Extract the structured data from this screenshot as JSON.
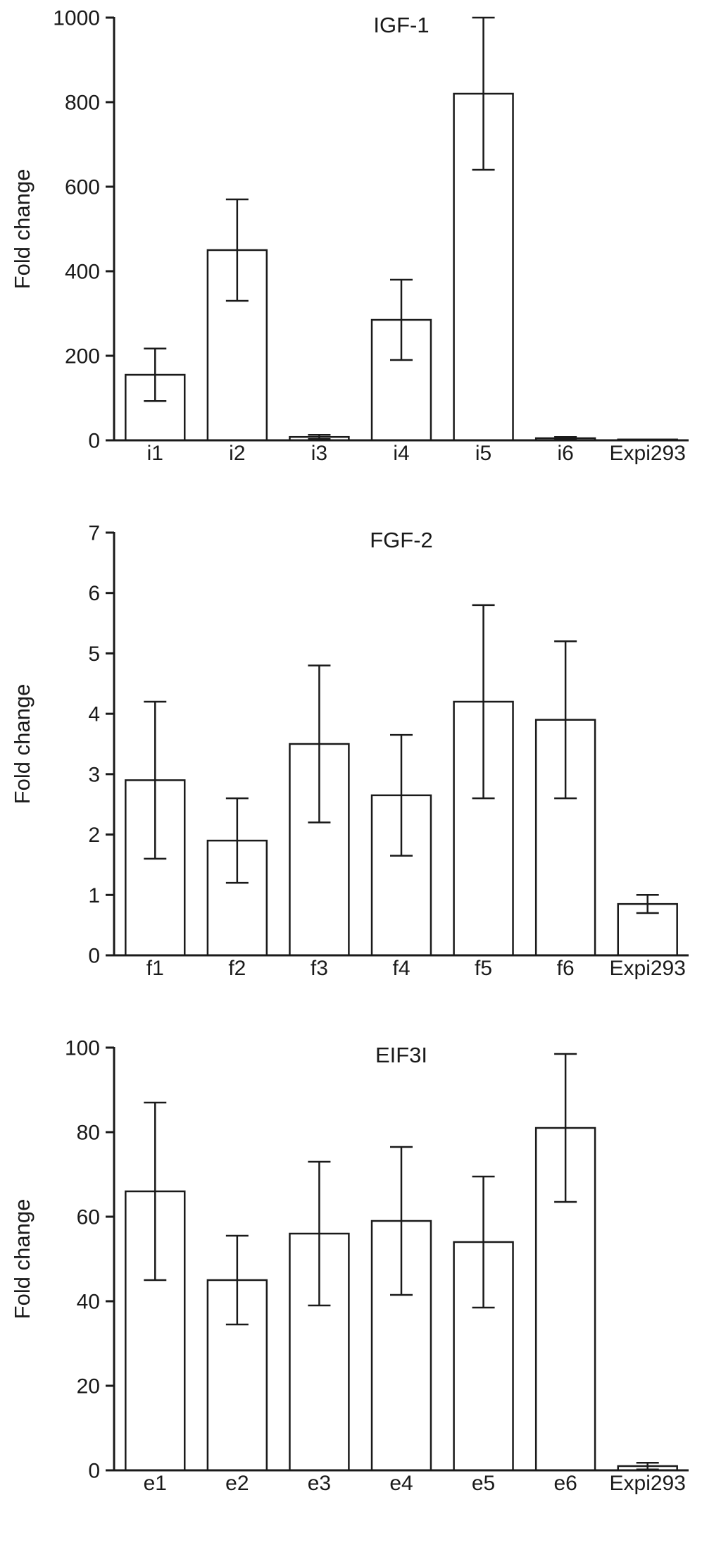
{
  "figure": {
    "background": "#ffffff",
    "ink": "#1a1a1a",
    "bar_fill": "#ffffff"
  },
  "chart_data": [
    {
      "type": "bar",
      "title": "IGF-1",
      "ylabel": "Fold change",
      "categories": [
        "i1",
        "i2",
        "i3",
        "i4",
        "i5",
        "i6",
        "Expi293"
      ],
      "values": [
        155,
        450,
        8,
        285,
        820,
        5,
        2
      ],
      "errors": [
        62,
        120,
        5,
        95,
        180,
        3,
        0
      ],
      "ylim": [
        0,
        1000
      ],
      "yticks": [
        0,
        200,
        400,
        600,
        800,
        1000
      ],
      "grid": false,
      "legend": "none",
      "error_bars": "symmetric with caps"
    },
    {
      "type": "bar",
      "title": "FGF-2",
      "ylabel": "Fold change",
      "categories": [
        "f1",
        "f2",
        "f3",
        "f4",
        "f5",
        "f6",
        "Expi293"
      ],
      "values": [
        2.9,
        1.9,
        3.5,
        2.65,
        4.2,
        3.9,
        0.85
      ],
      "errors": [
        1.3,
        0.7,
        1.3,
        1.0,
        1.6,
        1.3,
        0.15
      ],
      "ylim": [
        0,
        7
      ],
      "yticks": [
        0,
        1,
        2,
        3,
        4,
        5,
        6,
        7
      ],
      "grid": false,
      "legend": "none",
      "error_bars": "symmetric with caps"
    },
    {
      "type": "bar",
      "title": "EIF3I",
      "ylabel": "Fold change",
      "categories": [
        "e1",
        "e2",
        "e3",
        "e4",
        "e5",
        "e6",
        "Expi293"
      ],
      "values": [
        66,
        45,
        56,
        59,
        54,
        81,
        1
      ],
      "errors": [
        21,
        10.5,
        17,
        17.5,
        15.5,
        17.5,
        0.8
      ],
      "ylim": [
        0,
        100
      ],
      "yticks": [
        0,
        20,
        40,
        60,
        80,
        100
      ],
      "grid": false,
      "legend": "none",
      "error_bars": "symmetric with caps"
    }
  ]
}
